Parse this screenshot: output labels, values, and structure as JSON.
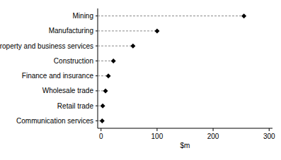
{
  "chart_data": {
    "type": "dot",
    "orientation": "horizontal",
    "categories": [
      "Mining",
      "Manufacturing",
      "Property and business services",
      "Construction",
      "Finance and insurance",
      "Wholesale trade",
      "Retail trade",
      "Communication services"
    ],
    "values": [
      255,
      100,
      57,
      22,
      13,
      8,
      3,
      2
    ],
    "color": "#000000",
    "marker": "diamond",
    "line_style": "dashed",
    "x_label": "$m",
    "xlim": [
      -6,
      306
    ],
    "xticks": [
      0,
      100,
      200,
      300
    ],
    "grid": false
  }
}
